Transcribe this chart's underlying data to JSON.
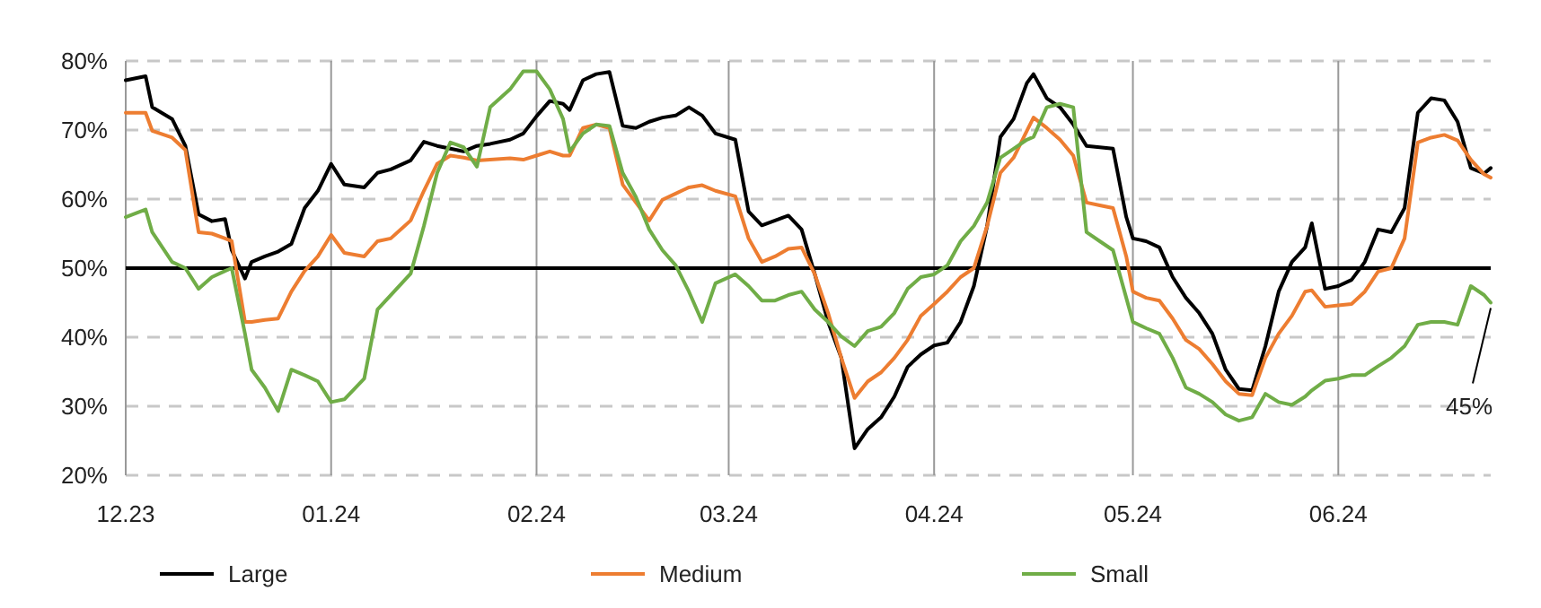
{
  "chart_data": {
    "type": "line",
    "x": [
      "2023-12-01",
      "2023-12-04",
      "2023-12-05",
      "2023-12-08",
      "2023-12-10",
      "2023-12-12",
      "2023-12-14",
      "2023-12-16",
      "2023-12-17",
      "2023-12-19",
      "2023-12-20",
      "2023-12-22",
      "2023-12-24",
      "2023-12-26",
      "2023-12-28",
      "2023-12-30",
      "2024-01-01",
      "2024-01-03",
      "2024-01-06",
      "2024-01-08",
      "2024-01-10",
      "2024-01-13",
      "2024-01-15",
      "2024-01-17",
      "2024-01-19",
      "2024-01-21",
      "2024-01-23",
      "2024-01-25",
      "2024-01-28",
      "2024-01-30",
      "2024-02-01",
      "2024-02-03",
      "2024-02-05",
      "2024-02-06",
      "2024-02-08",
      "2024-02-10",
      "2024-02-12",
      "2024-02-14",
      "2024-02-16",
      "2024-02-18",
      "2024-02-20",
      "2024-02-22",
      "2024-02-24",
      "2024-02-26",
      "2024-02-28",
      "2024-03-02",
      "2024-03-04",
      "2024-03-06",
      "2024-03-08",
      "2024-03-10",
      "2024-03-12",
      "2024-03-14",
      "2024-03-16",
      "2024-03-18",
      "2024-03-20",
      "2024-03-22",
      "2024-03-24",
      "2024-03-26",
      "2024-03-28",
      "2024-03-30",
      "2024-04-01",
      "2024-04-03",
      "2024-04-05",
      "2024-04-07",
      "2024-04-09",
      "2024-04-11",
      "2024-04-13",
      "2024-04-15",
      "2024-04-16",
      "2024-04-18",
      "2024-04-20",
      "2024-04-22",
      "2024-04-24",
      "2024-04-26",
      "2024-04-28",
      "2024-04-30",
      "2024-05-01",
      "2024-05-03",
      "2024-05-05",
      "2024-05-07",
      "2024-05-09",
      "2024-05-11",
      "2024-05-13",
      "2024-05-15",
      "2024-05-17",
      "2024-05-19",
      "2024-05-21",
      "2024-05-23",
      "2024-05-25",
      "2024-05-27",
      "2024-05-28",
      "2024-05-30",
      "2024-06-01",
      "2024-06-03",
      "2024-06-05",
      "2024-06-07",
      "2024-06-09",
      "2024-06-11",
      "2024-06-13",
      "2024-06-15",
      "2024-06-17",
      "2024-06-19",
      "2024-06-21",
      "2024-06-23",
      "2024-06-24"
    ],
    "series": [
      {
        "name": "Large",
        "color": "#000000",
        "values": [
          77.2,
          77.8,
          73.3,
          71.6,
          67.7,
          57.8,
          56.8,
          57.1,
          52.6,
          48.5,
          50.9,
          51.7,
          52.4,
          53.5,
          58.7,
          61.2,
          65.1,
          62.1,
          61.7,
          63.8,
          64.3,
          65.6,
          68.3,
          67.7,
          67.3,
          66.9,
          67.7,
          68.0,
          68.6,
          69.5,
          72,
          74.2,
          73.8,
          72.9,
          77.2,
          78.1,
          78.4,
          70.6,
          70.3,
          71.2,
          71.8,
          72.1,
          73.3,
          72.1,
          69.5,
          68.6,
          58.2,
          56.2,
          56.9,
          57.6,
          55.6,
          49.1,
          42.2,
          37.0,
          23.9,
          26.7,
          28.4,
          31.4,
          35.7,
          37.5,
          38.8,
          39.2,
          42.2,
          47.4,
          56.1,
          69.0,
          71.6,
          76.8,
          78.1,
          74.6,
          73.3,
          70.8,
          67.7,
          67.5,
          67.3,
          57.4,
          54.3,
          53.9,
          53.0,
          48.7,
          45.7,
          43.5,
          40.5,
          35.3,
          32.5,
          32.3,
          38.7,
          46.6,
          50.9,
          53.0,
          56.5,
          47.0,
          47.4,
          48.3,
          50.9,
          55.6,
          55.2,
          58.7,
          72.5,
          74.6,
          74.3,
          71.2,
          64.5,
          63.7,
          64.5
        ]
      },
      {
        "name": "Medium",
        "color": "#ed7d31",
        "values": [
          72.5,
          72.5,
          69.9,
          68.9,
          67.1,
          55.2,
          55.0,
          54.3,
          53.9,
          42.2,
          42.2,
          42.5,
          42.7,
          46.6,
          49.6,
          51.7,
          54.8,
          52.2,
          51.7,
          53.9,
          54.3,
          56.9,
          61.2,
          65.1,
          66.3,
          66.0,
          65.6,
          65.7,
          65.9,
          65.7,
          66.3,
          66.9,
          66.3,
          66.3,
          70.3,
          70.8,
          70.3,
          62.1,
          59.5,
          56.9,
          59.9,
          60.8,
          61.7,
          62.0,
          61.2,
          60.4,
          54.3,
          50.9,
          51.7,
          52.8,
          53.0,
          49.1,
          43.5,
          37.0,
          31.2,
          33.6,
          34.9,
          37.0,
          39.6,
          43.1,
          44.8,
          46.6,
          48.7,
          50.0,
          56.1,
          63.8,
          66.0,
          69.9,
          71.8,
          70.3,
          68.6,
          66.3,
          59.5,
          59.1,
          58.7,
          51.7,
          46.6,
          45.7,
          45.3,
          42.7,
          39.6,
          38.3,
          36.1,
          33.6,
          31.8,
          31.6,
          37.0,
          40.5,
          43.1,
          46.6,
          46.8,
          44.4,
          44.6,
          44.8,
          46.6,
          49.5,
          50.0,
          54.3,
          68.2,
          68.9,
          69.3,
          68.5,
          65.7,
          63.6,
          63.1
        ]
      },
      {
        "name": "Small",
        "color": "#70ad47",
        "values": [
          57.4,
          58.5,
          55.2,
          50.9,
          50.0,
          47.0,
          48.7,
          49.6,
          50.0,
          40.5,
          35.3,
          32.7,
          29.3,
          35.3,
          34.5,
          33.6,
          30.6,
          31.0,
          34.0,
          44.0,
          46.1,
          49.2,
          56.1,
          63.8,
          68.2,
          67.5,
          64.7,
          73.3,
          75.9,
          78.5,
          78.5,
          75.9,
          71.6,
          66.9,
          69.5,
          70.8,
          70.6,
          63.8,
          60.3,
          55.6,
          52.6,
          50.4,
          46.6,
          42.2,
          47.8,
          49.1,
          47.4,
          45.3,
          45.3,
          46.1,
          46.6,
          44.0,
          42.2,
          40.1,
          38.7,
          40.9,
          41.5,
          43.5,
          47.0,
          48.7,
          49.1,
          50.4,
          53.9,
          56.1,
          59.5,
          66.0,
          67.3,
          68.6,
          69.0,
          73.3,
          73.8,
          73.3,
          55.2,
          53.9,
          52.6,
          45.7,
          42.2,
          41.3,
          40.5,
          37.0,
          32.7,
          31.8,
          30.6,
          28.8,
          27.9,
          28.4,
          31.8,
          30.6,
          30.2,
          31.4,
          32.3,
          33.7,
          34.0,
          34.5,
          34.5,
          35.8,
          37.0,
          38.7,
          41.8,
          42.2,
          42.2,
          41.8,
          47.4,
          46.1,
          45
        ]
      }
    ],
    "xlim": [
      "2023-12-01",
      "2024-06-24"
    ],
    "xticks": [
      {
        "value": "2023-12-01",
        "label": "12.23"
      },
      {
        "value": "2024-01-01",
        "label": "01.24"
      },
      {
        "value": "2024-02-01",
        "label": "02.24"
      },
      {
        "value": "2024-03-01",
        "label": "03.24"
      },
      {
        "value": "2024-04-01",
        "label": "04.24"
      },
      {
        "value": "2024-05-01",
        "label": "05.24"
      },
      {
        "value": "2024-06-01",
        "label": "06.24"
      }
    ],
    "ylim": [
      20,
      80
    ],
    "yticks": [
      {
        "value": 20,
        "label": "20%"
      },
      {
        "value": 30,
        "label": "30%"
      },
      {
        "value": 40,
        "label": "40%"
      },
      {
        "value": 50,
        "label": "50%"
      },
      {
        "value": 60,
        "label": "60%"
      },
      {
        "value": 70,
        "label": "70%"
      },
      {
        "value": 80,
        "label": "80%"
      }
    ],
    "ref_lines": [
      {
        "axis": "y",
        "value": 50,
        "color": "#000000"
      }
    ],
    "annotations": [
      {
        "text": "45%",
        "x": "2024-06-24",
        "y": 45
      }
    ],
    "grid": true,
    "legend": "bottom",
    "marker": "none",
    "line_style": "solid"
  }
}
